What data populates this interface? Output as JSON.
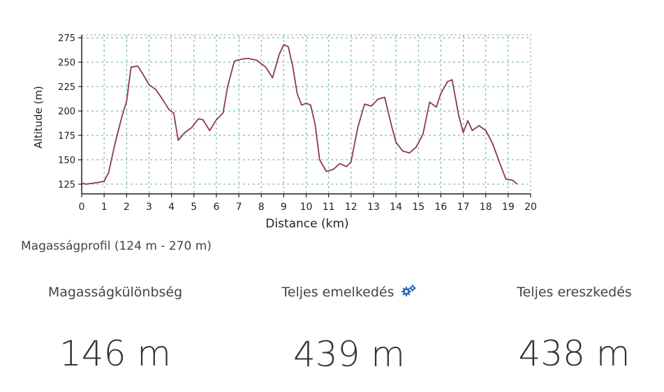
{
  "chart_data": {
    "type": "line",
    "xlabel": "Distance (km)",
    "ylabel": "Altitude (m)",
    "xlim": [
      0,
      20
    ],
    "ylim": [
      115,
      278
    ],
    "x_ticks": [
      0,
      1,
      2,
      3,
      4,
      5,
      6,
      7,
      8,
      9,
      10,
      11,
      12,
      13,
      14,
      15,
      16,
      17,
      18,
      19,
      20
    ],
    "y_ticks": [
      125,
      150,
      175,
      200,
      225,
      250,
      275
    ],
    "grid": true,
    "series": [
      {
        "color": "#8b3a4a",
        "x": [
          0,
          0.2,
          0.5,
          0.8,
          1.0,
          1.2,
          1.5,
          1.8,
          2.0,
          2.2,
          2.5,
          2.8,
          3.0,
          3.3,
          3.6,
          3.9,
          4.1,
          4.3,
          4.6,
          4.9,
          5.2,
          5.4,
          5.7,
          6.0,
          6.3,
          6.5,
          6.8,
          7.1,
          7.4,
          7.8,
          8.2,
          8.5,
          8.8,
          9.0,
          9.2,
          9.4,
          9.6,
          9.8,
          10.0,
          10.2,
          10.4,
          10.6,
          10.9,
          11.2,
          11.5,
          11.8,
          12.0,
          12.3,
          12.6,
          12.9,
          13.2,
          13.5,
          13.8,
          14.0,
          14.3,
          14.6,
          14.9,
          15.2,
          15.5,
          15.8,
          16.0,
          16.3,
          16.5,
          16.8,
          17.0,
          17.2,
          17.4,
          17.7,
          18.0,
          18.3,
          18.6,
          18.9,
          19.2,
          19.4
        ],
        "values": [
          126,
          125,
          126,
          127,
          128,
          137,
          168,
          195,
          210,
          245,
          246,
          235,
          227,
          222,
          212,
          201,
          198,
          170,
          178,
          183,
          192,
          191,
          180,
          191,
          198,
          225,
          251,
          253,
          254,
          252,
          245,
          234,
          258,
          268,
          266,
          246,
          218,
          206,
          208,
          206,
          186,
          150,
          138,
          140,
          146,
          143,
          148,
          183,
          207,
          205,
          212,
          214,
          185,
          168,
          159,
          157,
          163,
          176,
          209,
          204,
          218,
          230,
          232,
          195,
          178,
          190,
          180,
          185,
          180,
          167,
          148,
          130,
          129,
          125
        ]
      }
    ]
  },
  "profile": {
    "caption": "Magasságprofil (124 m - 270 m)"
  },
  "stats": {
    "diff": {
      "label": "Magasságkülönbség",
      "value": "146 m"
    },
    "ascent": {
      "label": "Teljes emelkedés",
      "value": "439 m",
      "icon": "gears-icon",
      "icon_color": "#2a6ebb"
    },
    "descent": {
      "label": "Teljes ereszkedés",
      "value": "438 m"
    }
  }
}
